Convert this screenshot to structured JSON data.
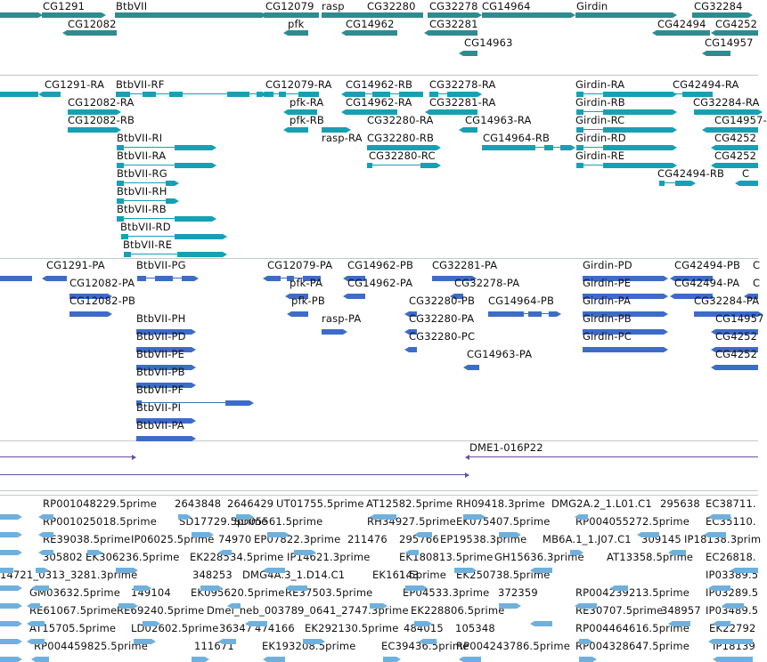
{
  "colors": {
    "genes": "#2f8c8e",
    "transcripts": "#17a0b3",
    "polypeptides": "#3d6cc8",
    "clones": "#6a4f9e",
    "ests": "#6fb0dc",
    "separator": "#c2c8cc"
  },
  "tracks": [
    {
      "name": "genes",
      "labels": [
        "CG1291",
        "BtbVII",
        "CG12082",
        "CG12079",
        "rasp",
        "pfk",
        "CG32280",
        "CG14962",
        "CG32278",
        "CG32281",
        "CG14964",
        "CG14963",
        "Girdin",
        "CG42494",
        "CG32284",
        "CG4252",
        "CG14957"
      ]
    },
    {
      "name": "transcripts",
      "labels": [
        "CG1291-RA",
        "BtbVII-RF",
        "CG12082-RA",
        "CG12082-RB",
        "BtbVII-RI",
        "BtbVII-RA",
        "BtbVII-RG",
        "BtbVII-RH",
        "BtbVII-RB",
        "BtbVII-RD",
        "BtbVII-RE",
        "CG12079-RA",
        "pfk-RA",
        "pfk-RB",
        "rasp-RA",
        "CG14962-RB",
        "CG14962-RA",
        "CG32280-RA",
        "CG32280-RB",
        "CG32280-RC",
        "CG32278-RA",
        "CG32281-RA",
        "CG14963-RA",
        "CG14964-RB",
        "Girdin-RA",
        "Girdin-RB",
        "Girdin-RC",
        "Girdin-RD",
        "Girdin-RE",
        "CG42494-RA",
        "CG32284-RA",
        "CG14957-",
        "CG4252",
        "CG4252",
        "CG42494-RB",
        "C"
      ]
    },
    {
      "name": "polypeptides",
      "labels": [
        "CG1291-PA",
        "BtbVII-PG",
        "CG12082-PA",
        "CG12082-PB",
        "BtbVII-PH",
        "BtbVII-PD",
        "BtbVII-PE",
        "BtbVII-PB",
        "BtbVII-PF",
        "BtbVII-PI",
        "BtbVII-PA",
        "CG12079-PA",
        "pfk-PA",
        "pfk-PB",
        "rasp-PA",
        "CG14962-PB",
        "CG14962-PA",
        "CG32281-PA",
        "CG32278-PA",
        "CG32280-PB",
        "CG32280-PA",
        "CG32280-PC",
        "CG14964-PB",
        "CG14963-PA",
        "Girdin-PD",
        "Girdin-PE",
        "Girdin-PA",
        "Girdin-PB",
        "Girdin-PC",
        "CG42494-PB",
        "CG42494-PA",
        "CG32284-PA",
        "CG14957",
        "CG4252",
        "CG4252",
        "C",
        "C"
      ]
    },
    {
      "name": "clones",
      "labels": [
        "DME1-016P22"
      ]
    },
    {
      "name": "ests",
      "labels": [
        "RP001048229.5prime",
        "2643848",
        "2646429",
        "UT01755.5prime",
        "AT12582.5prime",
        "RH09418.3prime",
        "DMG2A.2_1.L01.C1",
        "295638",
        "EC38711.",
        "RP001025018.5prime",
        "SD17729.5prime",
        "SD05561.5prime",
        "RH34927.5prime",
        "EK075407.5prime",
        "RP004055272.5prime",
        "EC35110.",
        "RE39038.5prime",
        "IP06025.5prime",
        "74970",
        "EP07822.3prime",
        "211476",
        "295766",
        "EP19538.3prime",
        "MB6A.1_1.J07.C1",
        "309145",
        "IP18138.3prim",
        "305802",
        "EK306236.5prime",
        "EK228534.5prime",
        "IP14621.3prime",
        "EK180813.5prime",
        "GH15636.3prime",
        "AT13358.5prime",
        "EC26818.",
        "14721_0313_3281.3prime",
        "348253",
        "DMG4A.3_1.D14.C1",
        "EK16143",
        "1.5prime",
        "EK250738.5prime",
        "IP03389.5",
        "GM03632.5prime",
        "149104",
        "EK095620.5prime",
        "RE37503.5prime",
        "EP04533.3prime",
        "372359",
        "RP004239213.5prime",
        "IP03289.5",
        "RE61067.5prime",
        "RE69240.5prime",
        "Dmel_neb_003789_0641_2747.3prime",
        "EK228806.5prime",
        "RE30707.5prime",
        "348957",
        "IP03489.5",
        "AT15705.5prime",
        "LD02602.5prime",
        "36347",
        "474166",
        "EK292130.5prime",
        "484015",
        "105348",
        "RP004464616.5prime",
        "EK22792",
        "RP004459825.5prime",
        "111671",
        "EK193208.5prime",
        "EC39436.5prime",
        "RP004243786.5prime",
        "RP004328647.5prime",
        "IP18139"
      ]
    }
  ]
}
